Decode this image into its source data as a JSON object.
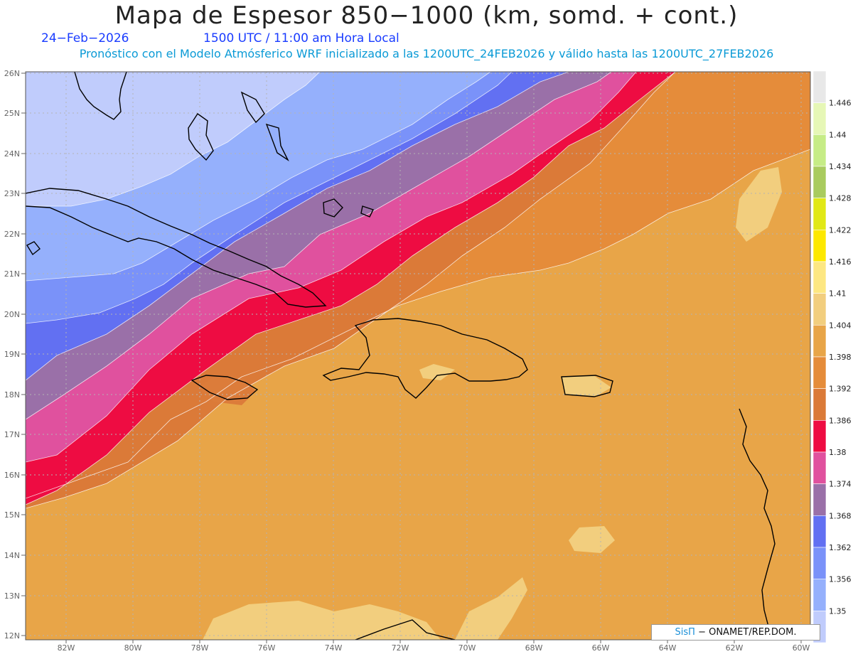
{
  "header": {
    "title": "Mapa de Espesor 850−1000 (km, somd. + cont.)",
    "date": "24−Feb−2026",
    "time": "1500 UTC / 11:00 am Hora Local",
    "subtitle": "Pronóstico con el Modelo Atmósferico WRF inicializado a las 1200UTC_24FEB2026 y válido hasta las  1200UTC_27FEB2026"
  },
  "credit": {
    "brand": "SisΠ",
    "text": " − ONAMET/REP.DOM."
  },
  "map": {
    "lat_labels": [
      "26N",
      "25N",
      "24N",
      "23N",
      "22N",
      "21N",
      "20N",
      "19N",
      "18N",
      "17N",
      "16N",
      "15N",
      "14N",
      "13N",
      "12N"
    ],
    "lon_labels": [
      "82W",
      "80W",
      "78W",
      "76W",
      "74W",
      "72W",
      "70W",
      "68W",
      "66W",
      "64W",
      "62W",
      "60W"
    ]
  },
  "legend": {
    "levels": [
      "1.35",
      "1.356",
      "1.362",
      "1.368",
      "1.374",
      "1.38",
      "1.386",
      "1.392",
      "1.398",
      "1.404",
      "1.41",
      "1.416",
      "1.422",
      "1.428",
      "1.434",
      "1.44",
      "1.446"
    ],
    "colors": [
      "#c0ccfc",
      "#95b0fc",
      "#7a92f9",
      "#6270f2",
      "#9a70a8",
      "#e0519e",
      "#ee0c42",
      "#db7a38",
      "#e58c3a",
      "#e8a548",
      "#f2ce7e",
      "#fde782",
      "#fde800",
      "#e1e816",
      "#a9cb5e",
      "#c6ec86",
      "#e6f7b6",
      "#e8e8e8"
    ]
  },
  "colors": {
    "coast": "#000000",
    "grid": "#b4b4b4",
    "contour": "#ffffff"
  }
}
